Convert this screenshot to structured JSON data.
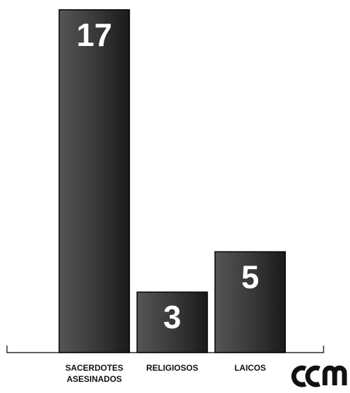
{
  "chart_data": {
    "type": "bar",
    "categories": [
      "SACERDOTES ASESINADOS",
      "RELIGIOSOS",
      "LAICOS"
    ],
    "values": [
      17,
      3,
      5
    ],
    "color": "#2e2e2e",
    "grid": false
  }
}
